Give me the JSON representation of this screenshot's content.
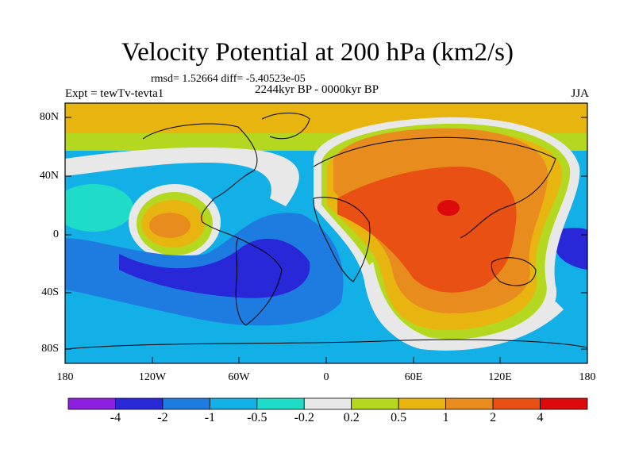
{
  "title": "Velocity Potential at 200 hPa (km2/s)",
  "subtitle_stats": "rmsd= 1.52664 diff= -5.40523e-05",
  "subtitle_period": "2244kyr BP - 0000kyr BP",
  "experiment_label": "Expt = tewTv-tevta1",
  "season_label": "JJA",
  "lat_ticks": [
    "80N",
    "40N",
    "0",
    "40S",
    "80S"
  ],
  "lon_ticks": [
    "180",
    "120W",
    "60W",
    "0",
    "60E",
    "120E",
    "180"
  ],
  "colorbar": {
    "colors": [
      "#8c1ee0",
      "#2828d8",
      "#1e7ce0",
      "#12b0e6",
      "#1edcc8",
      "#e8e8e8",
      "#b4d820",
      "#e8b410",
      "#e88c1e",
      "#e85014",
      "#dc0a0a"
    ],
    "labels": [
      "-4",
      "-2",
      "-1",
      "-0.5",
      "-0.2",
      "0.2",
      "0.5",
      "1",
      "2",
      "4"
    ]
  }
}
